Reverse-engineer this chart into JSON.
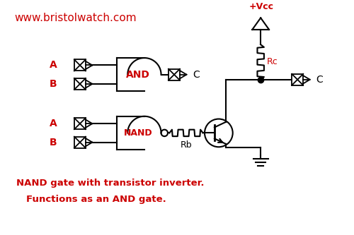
{
  "title": "www.bristolwatch.com",
  "title_color": "#cc0000",
  "bg_color": "#ffffff",
  "line_color": "#000000",
  "red_color": "#cc0000",
  "caption1": "NAND gate with transistor inverter.",
  "caption2": "Functions as an AND gate.",
  "and_gate_label": "AND",
  "nand_gate_label": "NAND",
  "vcc_label": "+Vcc",
  "rc_label": "Rc",
  "rb_label": "Rb",
  "c_label": "C",
  "a_label": "A",
  "b_label": "B",
  "figw": 5.0,
  "figh": 3.33,
  "dpi": 100,
  "xlim": [
    0,
    10
  ],
  "ylim": [
    0,
    6.66
  ]
}
